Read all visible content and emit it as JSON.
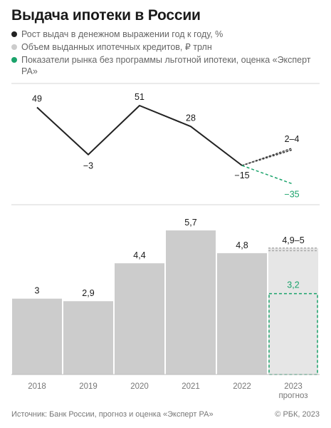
{
  "title": "Выдача ипотеки в России",
  "legend": [
    {
      "label": "Рост выдач в денежном выражении год к году, %",
      "color": "#222222"
    },
    {
      "label": "Объем выданных ипотечных кредитов, ₽ трлн",
      "color": "#cccccc"
    },
    {
      "label": "Показатели рынка без программы льготной ипотеки, оценка «Эксперт РА»",
      "color": "#1aa36b"
    }
  ],
  "chart_data": [
    {
      "type": "line",
      "x": [
        "2018",
        "2019",
        "2020",
        "2021",
        "2022"
      ],
      "series": [
        {
          "name": "Рост выдач в денежном выражении год к году, %",
          "values": [
            49,
            -3,
            51,
            28,
            -15
          ]
        }
      ],
      "forecast": {
        "x": "2023",
        "range": [
          2,
          4
        ],
        "label": "2–4"
      },
      "forecast_no_subsidy": {
        "x": "2023",
        "value": -35,
        "label": "−35"
      },
      "labels": [
        "49",
        "−3",
        "51",
        "28",
        "−15"
      ]
    },
    {
      "type": "bar",
      "categories": [
        "2018",
        "2019",
        "2020",
        "2021",
        "2022",
        "2023"
      ],
      "category_sublabels": [
        "",
        "",
        "",
        "",
        "",
        "прогноз"
      ],
      "values": [
        3,
        2.9,
        4.4,
        5.7,
        4.8,
        5
      ],
      "value_labels": [
        "3",
        "2,9",
        "4,4",
        "5,7",
        "4,8",
        "4,9–5"
      ],
      "forecast_range": [
        4.9,
        5
      ],
      "no_subsidy_value": 3.2,
      "no_subsidy_label": "3,2"
    }
  ],
  "colors": {
    "line": "#222222",
    "bar": "#cccccc",
    "forecast_bar": "#e6e6e6",
    "green": "#1aa36b"
  },
  "footer": {
    "source": "Источник: Банк России, прогноз и оценка «Эксперт РА»",
    "copyright": "© РБК, 2023"
  }
}
